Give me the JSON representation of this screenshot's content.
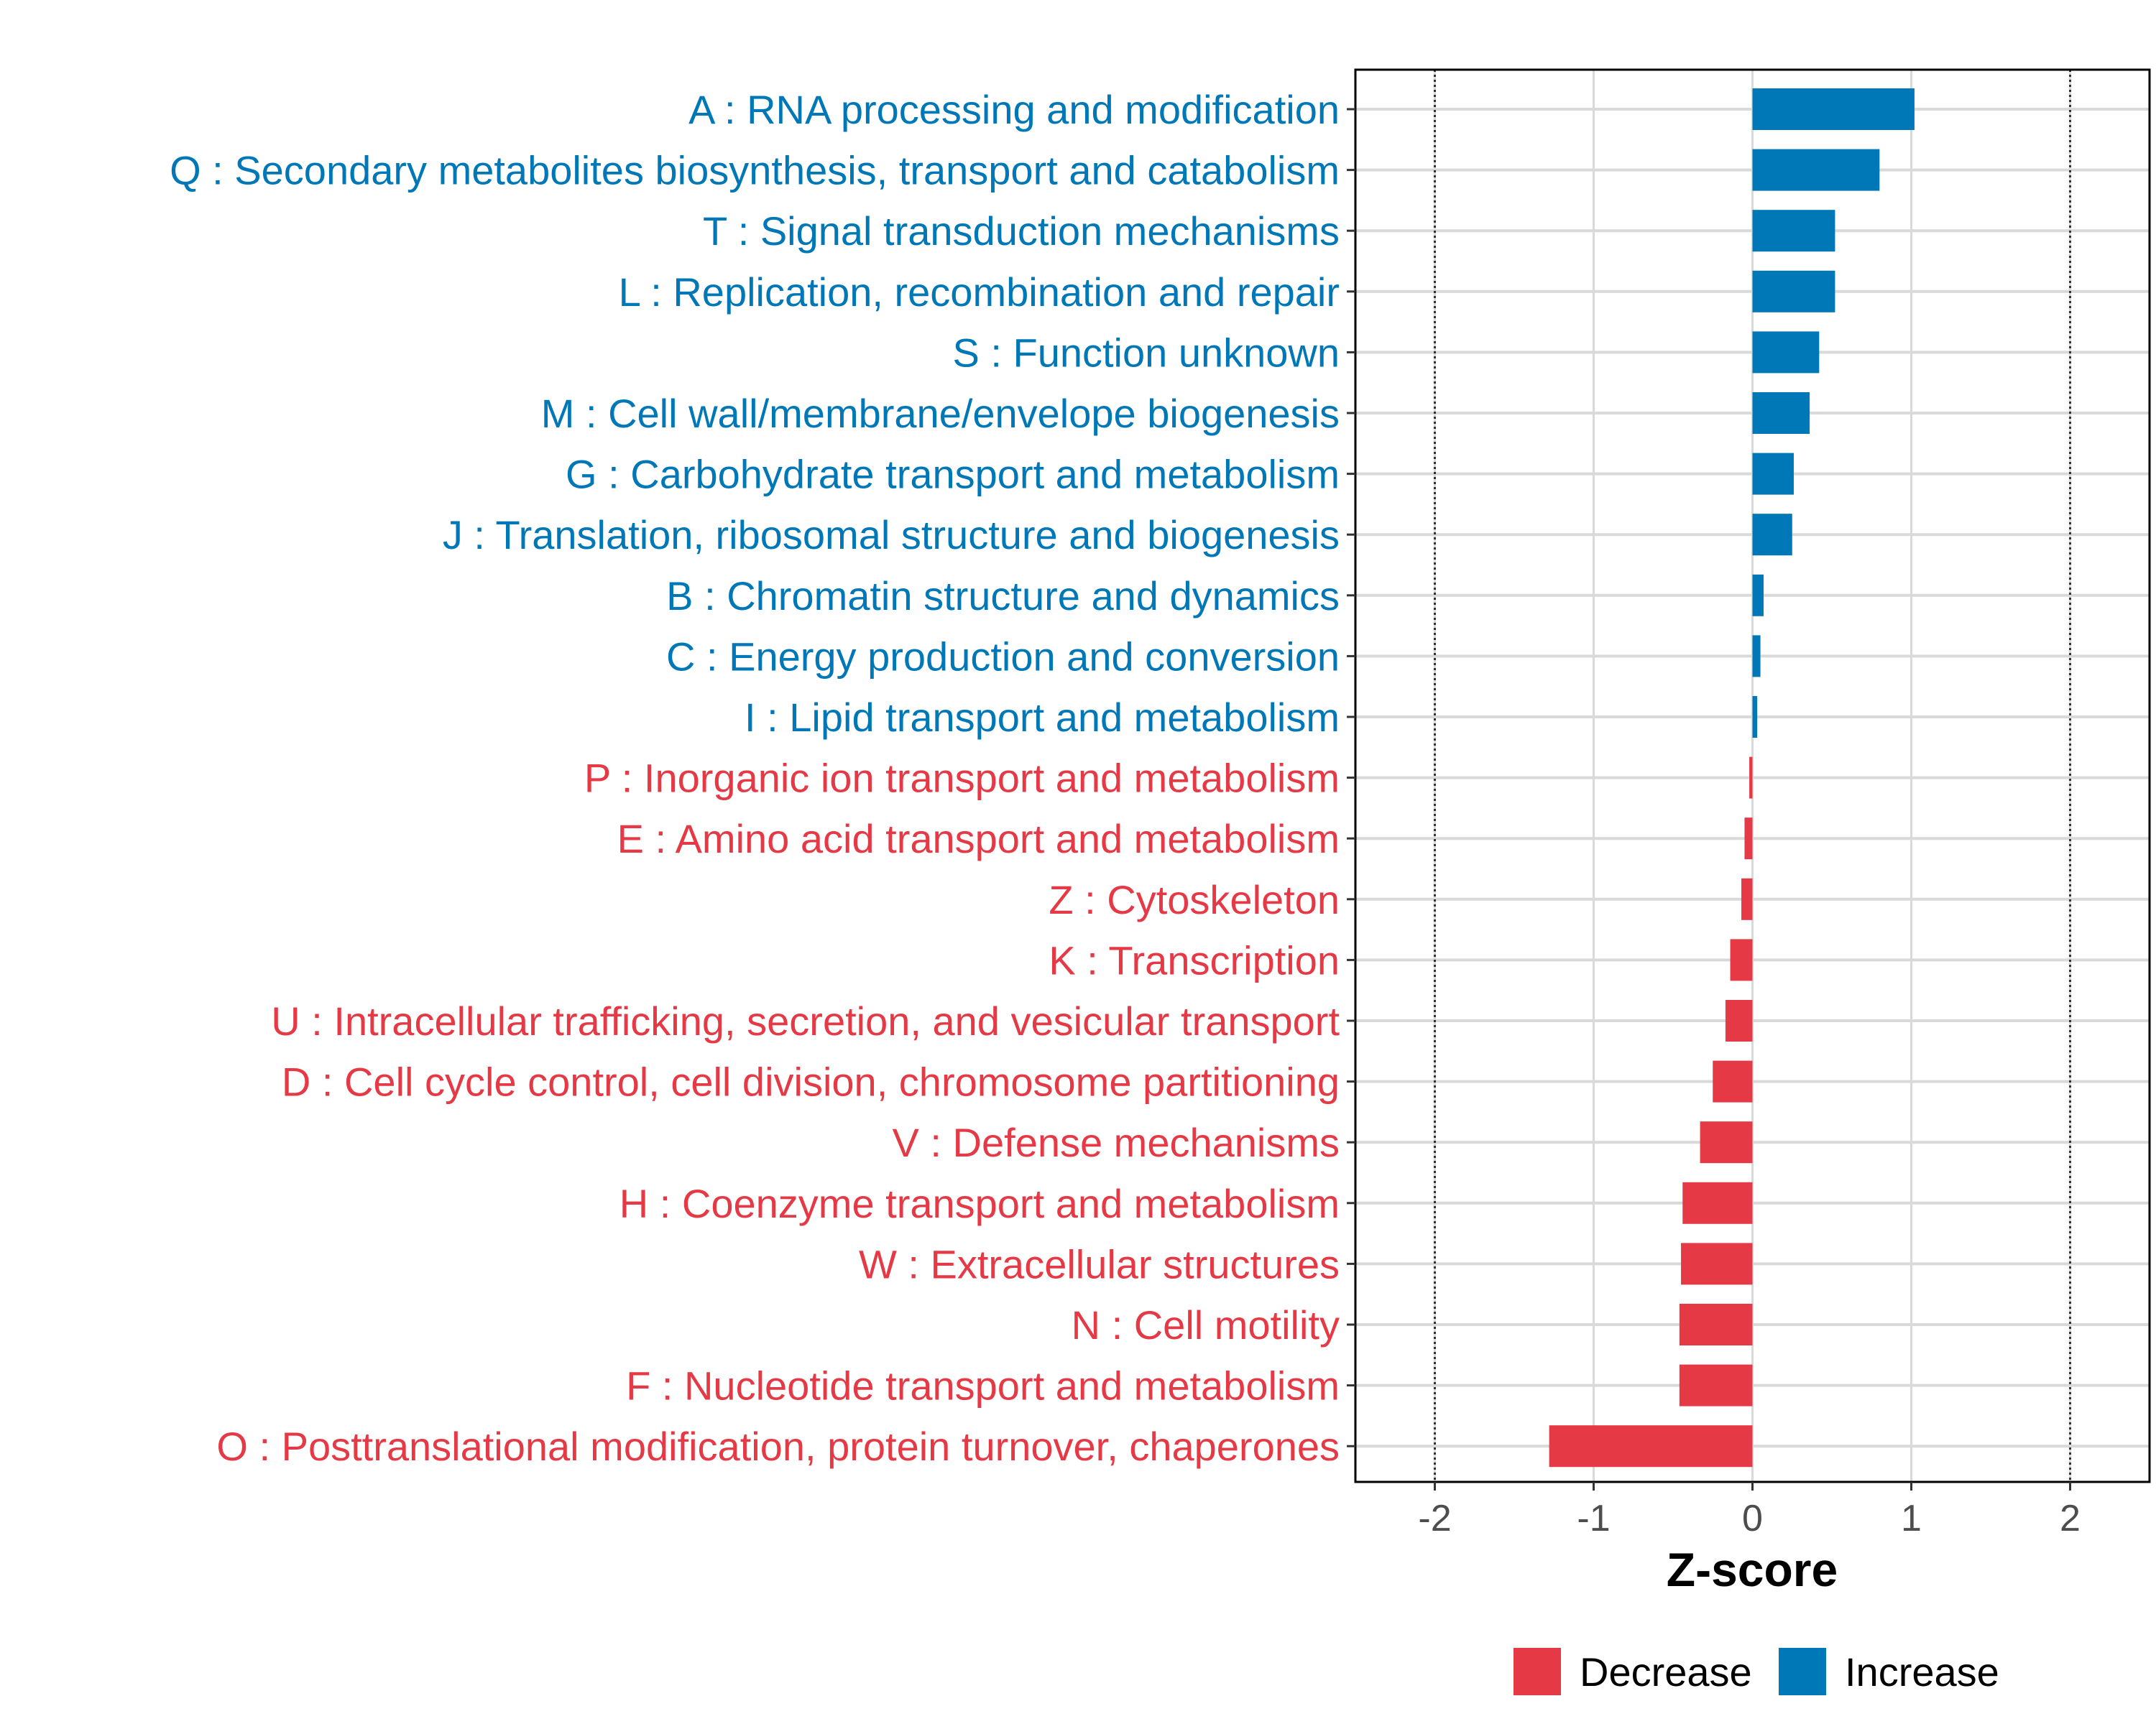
{
  "chart_data": {
    "type": "bar",
    "orientation": "horizontal",
    "xlabel": "Z-score",
    "xlim": [
      -2.5,
      2.5
    ],
    "xticks": [
      -2,
      -1,
      0,
      1,
      2
    ],
    "xtick_labels": [
      "-2",
      "-1",
      "0",
      "1",
      "2"
    ],
    "reference_lines": [
      -2,
      2
    ],
    "grid": true,
    "colors": {
      "Decrease": "#e63946",
      "Increase": "#0077b6"
    },
    "legend": {
      "position": "bottom",
      "entries": [
        {
          "label": "Decrease",
          "color": "#e63946"
        },
        {
          "label": "Increase",
          "color": "#0077b6"
        }
      ]
    },
    "categories": [
      "A : RNA processing and modification",
      "Q : Secondary metabolites biosynthesis, transport and catabolism",
      "T : Signal transduction mechanisms",
      "L : Replication, recombination and repair",
      "S : Function unknown",
      "M : Cell wall/membrane/envelope biogenesis",
      "G : Carbohydrate transport and metabolism",
      "J : Translation, ribosomal structure and biogenesis",
      "B : Chromatin structure and dynamics",
      "C : Energy production and conversion",
      "I : Lipid transport and metabolism",
      "P : Inorganic ion transport and metabolism",
      "E : Amino acid transport and metabolism",
      "Z : Cytoskeleton",
      "K : Transcription",
      "U : Intracellular trafficking, secretion, and vesicular transport",
      "D : Cell cycle control, cell division, chromosome partitioning",
      "V : Defense mechanisms",
      "H : Coenzyme transport and metabolism",
      "W : Extracellular structures",
      "N : Cell motility",
      "F : Nucleotide transport and metabolism",
      "O : Posttranslational modification, protein turnover, chaperones"
    ],
    "values": [
      1.02,
      0.8,
      0.52,
      0.52,
      0.42,
      0.36,
      0.26,
      0.25,
      0.07,
      0.05,
      0.03,
      -0.02,
      -0.05,
      -0.07,
      -0.14,
      -0.17,
      -0.25,
      -0.33,
      -0.44,
      -0.45,
      -0.46,
      -0.46,
      -1.28
    ],
    "groups": [
      "Increase",
      "Increase",
      "Increase",
      "Increase",
      "Increase",
      "Increase",
      "Increase",
      "Increase",
      "Increase",
      "Increase",
      "Increase",
      "Decrease",
      "Decrease",
      "Decrease",
      "Decrease",
      "Decrease",
      "Decrease",
      "Decrease",
      "Decrease",
      "Decrease",
      "Decrease",
      "Decrease",
      "Decrease"
    ]
  }
}
